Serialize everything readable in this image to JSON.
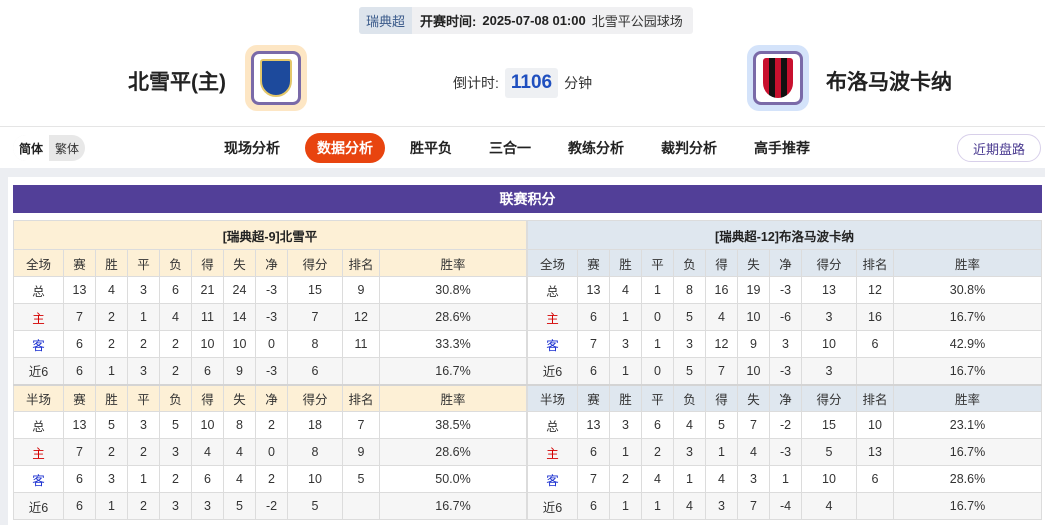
{
  "match": {
    "league": "瑞典超",
    "start_label": "开赛时间:",
    "start_time": "2025-07-08 01:00",
    "venue": "北雪平公园球场",
    "home_team": "北雪平(主)",
    "away_team": "布洛马波卡纳",
    "countdown_label": "倒计时:",
    "countdown_value": "1106",
    "countdown_unit": "分钟"
  },
  "nav": {
    "lang": [
      "简体",
      "繁体"
    ],
    "tabs": [
      "现场分析",
      "数据分析",
      "胜平负",
      "三合一",
      "教练分析",
      "裁判分析",
      "高手推荐"
    ],
    "active_tab": "数据分析",
    "recent_button": "近期盘路"
  },
  "colors": {
    "accent": "#e8440f",
    "title_bar": "#523f98",
    "home_bg": "#fdf0d6",
    "away_bg": "#dfe7ef"
  },
  "standings": {
    "title": "联赛积分",
    "columns": [
      "赛",
      "胜",
      "平",
      "负",
      "得",
      "失",
      "净",
      "得分",
      "排名",
      "胜率"
    ],
    "home": {
      "header": "[瑞典超-9]北雪平",
      "full": {
        "label": "全场",
        "rows": [
          [
            "总",
            "13",
            "4",
            "3",
            "6",
            "21",
            "24",
            "-3",
            "15",
            "9",
            "30.8%"
          ],
          [
            "主",
            "7",
            "2",
            "1",
            "4",
            "11",
            "14",
            "-3",
            "7",
            "12",
            "28.6%"
          ],
          [
            "客",
            "6",
            "2",
            "2",
            "2",
            "10",
            "10",
            "0",
            "8",
            "11",
            "33.3%"
          ],
          [
            "近6",
            "6",
            "1",
            "3",
            "2",
            "6",
            "9",
            "-3",
            "6",
            "",
            "16.7%"
          ]
        ]
      },
      "half": {
        "label": "半场",
        "rows": [
          [
            "总",
            "13",
            "5",
            "3",
            "5",
            "10",
            "8",
            "2",
            "18",
            "7",
            "38.5%"
          ],
          [
            "主",
            "7",
            "2",
            "2",
            "3",
            "4",
            "4",
            "0",
            "8",
            "9",
            "28.6%"
          ],
          [
            "客",
            "6",
            "3",
            "1",
            "2",
            "6",
            "4",
            "2",
            "10",
            "5",
            "50.0%"
          ],
          [
            "近6",
            "6",
            "1",
            "2",
            "3",
            "3",
            "5",
            "-2",
            "5",
            "",
            "16.7%"
          ]
        ]
      }
    },
    "away": {
      "header": "[瑞典超-12]布洛马波卡纳",
      "full": {
        "label": "全场",
        "rows": [
          [
            "总",
            "13",
            "4",
            "1",
            "8",
            "16",
            "19",
            "-3",
            "13",
            "12",
            "30.8%"
          ],
          [
            "主",
            "6",
            "1",
            "0",
            "5",
            "4",
            "10",
            "-6",
            "3",
            "16",
            "16.7%"
          ],
          [
            "客",
            "7",
            "3",
            "1",
            "3",
            "12",
            "9",
            "3",
            "10",
            "6",
            "42.9%"
          ],
          [
            "近6",
            "6",
            "1",
            "0",
            "5",
            "7",
            "10",
            "-3",
            "3",
            "",
            "16.7%"
          ]
        ]
      },
      "half": {
        "label": "半场",
        "rows": [
          [
            "总",
            "13",
            "3",
            "6",
            "4",
            "5",
            "7",
            "-2",
            "15",
            "10",
            "23.1%"
          ],
          [
            "主",
            "6",
            "1",
            "2",
            "3",
            "1",
            "4",
            "-3",
            "5",
            "13",
            "16.7%"
          ],
          [
            "客",
            "7",
            "2",
            "4",
            "1",
            "4",
            "3",
            "1",
            "10",
            "6",
            "28.6%"
          ],
          [
            "近6",
            "6",
            "1",
            "1",
            "4",
            "3",
            "7",
            "-4",
            "4",
            "",
            "16.7%"
          ]
        ]
      }
    }
  }
}
